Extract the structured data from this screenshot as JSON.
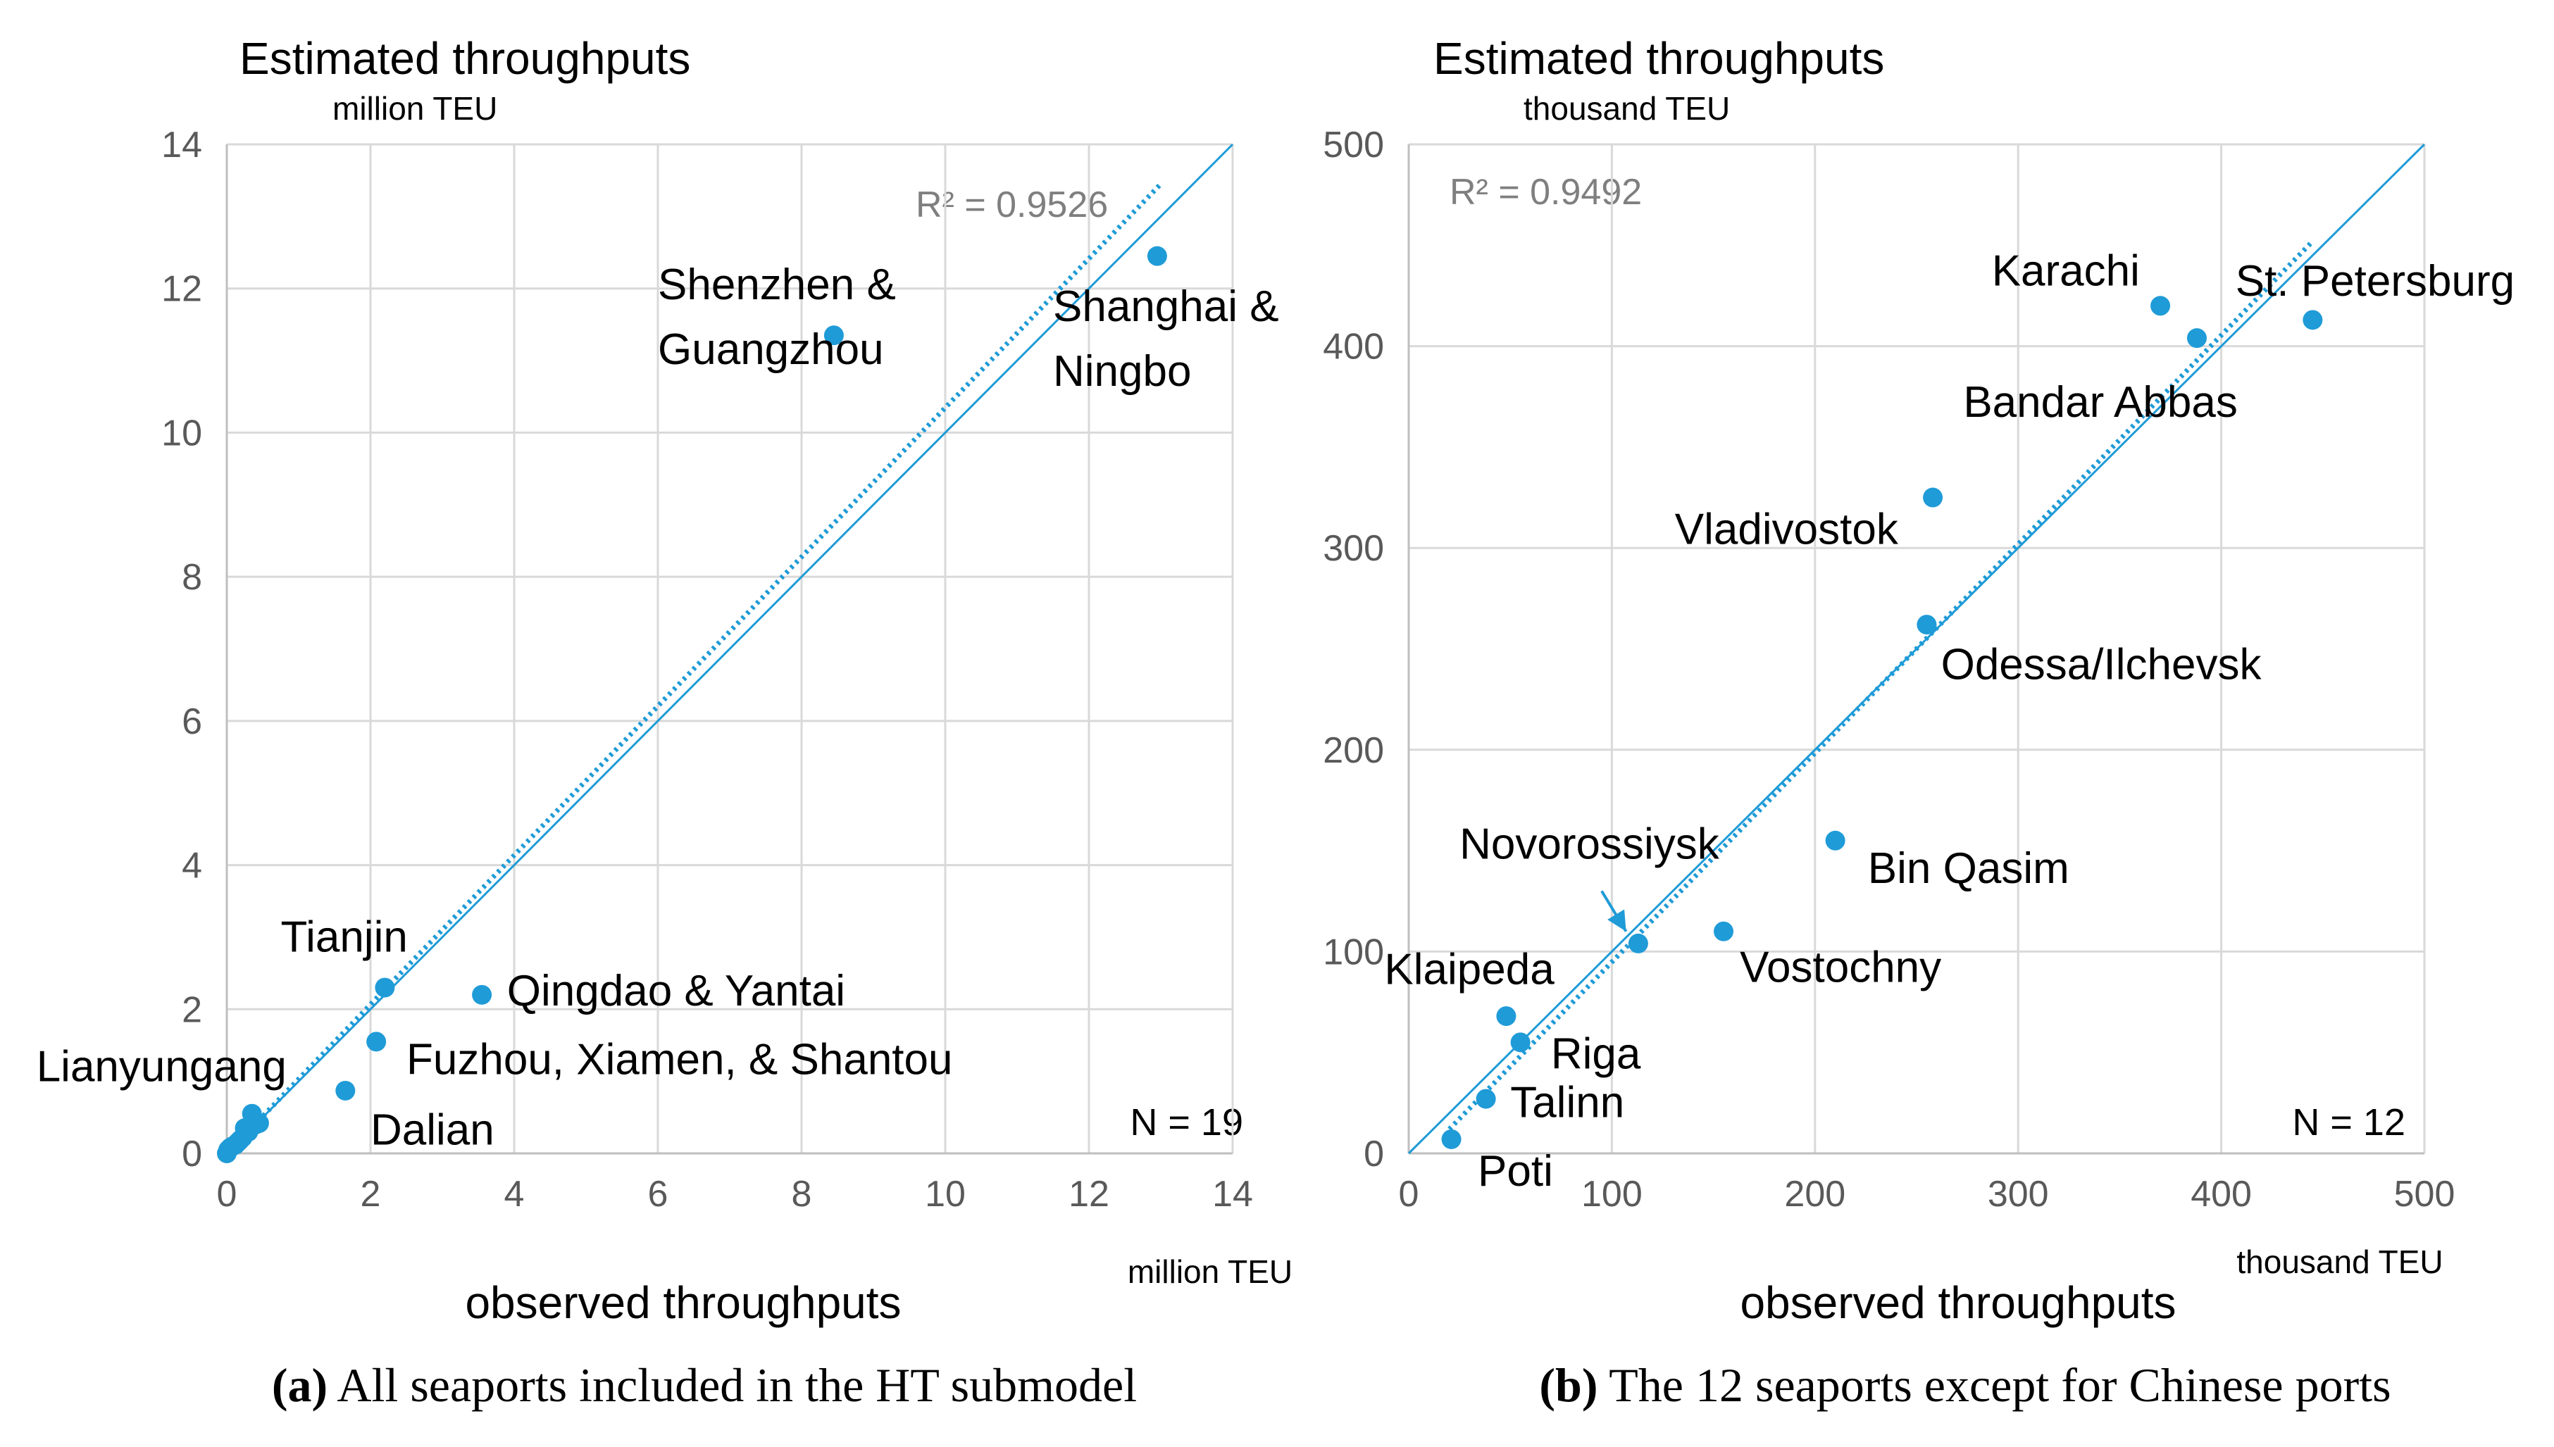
{
  "chart_data": [
    {
      "type": "scatter",
      "title": "Estimated throughputs",
      "ylabel": "Estimated throughputs",
      "yunit": "million TEU",
      "xlabel": "observed throughputs",
      "xunit": "million TEU",
      "xlim": [
        0,
        14
      ],
      "ylim": [
        0,
        14
      ],
      "xticks": [
        0,
        2,
        4,
        6,
        8,
        10,
        12,
        14
      ],
      "yticks": [
        0,
        2,
        4,
        6,
        8,
        10,
        12,
        14
      ],
      "grid": true,
      "r2_label": "R² = 0.9526",
      "n_label": "N = 19",
      "trendline": {
        "style": "dotted",
        "from": [
          0.1,
          0.1
        ],
        "to": [
          13.0,
          13.45
        ]
      },
      "identity_line": {
        "style": "solid",
        "from": [
          0,
          0
        ],
        "to": [
          14,
          14
        ]
      },
      "points": [
        {
          "x": 0.0,
          "y": 0.0
        },
        {
          "x": 0.02,
          "y": 0.05
        },
        {
          "x": 0.05,
          "y": 0.08
        },
        {
          "x": 0.08,
          "y": 0.1
        },
        {
          "x": 0.12,
          "y": 0.12
        },
        {
          "x": 0.18,
          "y": 0.18
        },
        {
          "x": 0.22,
          "y": 0.22
        },
        {
          "x": 0.25,
          "y": 0.35
        },
        {
          "x": 0.35,
          "y": 0.55
        },
        {
          "x": 0.45,
          "y": 0.42
        },
        {
          "x": 0.3,
          "y": 0.3
        },
        {
          "x": 0.15,
          "y": 0.15
        },
        {
          "x": 1.65,
          "y": 0.87
        },
        {
          "x": 2.08,
          "y": 1.55
        },
        {
          "x": 2.2,
          "y": 2.3
        },
        {
          "x": 3.55,
          "y": 2.2
        },
        {
          "x": 8.45,
          "y": 11.35
        },
        {
          "x": 12.95,
          "y": 12.45
        },
        {
          "x": 0.4,
          "y": 0.4
        }
      ],
      "labels": [
        {
          "text": "Shenzhen &",
          "x": 6.0,
          "y": 11.85
        },
        {
          "text": "Guangzhou",
          "x": 6.0,
          "y": 10.95
        },
        {
          "text": "Shanghai &",
          "x": 11.5,
          "y": 11.55
        },
        {
          "text": "Ningbo",
          "x": 11.5,
          "y": 10.65
        },
        {
          "text": "Tianjin",
          "x": 0.75,
          "y": 2.8
        },
        {
          "text": "Qingdao & Yantai",
          "x": 3.9,
          "y": 2.05
        },
        {
          "text": "Fuzhou, Xiamen, & Shantou",
          "x": 2.5,
          "y": 1.1
        },
        {
          "text": "Lianyungang",
          "x": -2.65,
          "y": 1.0
        },
        {
          "text": "Dalian",
          "x": 2.0,
          "y": 0.12
        }
      ],
      "caption_letter": "(a)",
      "caption_text": " All seaports included in the HT submodel"
    },
    {
      "type": "scatter",
      "title": "Estimated throughputs",
      "ylabel": "Estimated throughputs",
      "yunit": "thousand TEU",
      "xlabel": "observed throughputs",
      "xunit": "thousand TEU",
      "xlim": [
        0,
        500
      ],
      "ylim": [
        0,
        500
      ],
      "xticks": [
        0,
        100,
        200,
        300,
        400,
        500
      ],
      "yticks": [
        0,
        100,
        200,
        300,
        400,
        500
      ],
      "grid": true,
      "r2_label": "R² = 0.9492",
      "n_label": "N = 12",
      "trendline": {
        "style": "dotted",
        "from": [
          20,
          12
        ],
        "to": [
          445,
          452
        ]
      },
      "identity_line": {
        "style": "solid",
        "from": [
          0,
          0
        ],
        "to": [
          500,
          500
        ]
      },
      "points": [
        {
          "x": 21,
          "y": 7
        },
        {
          "x": 38,
          "y": 27
        },
        {
          "x": 55,
          "y": 55
        },
        {
          "x": 48,
          "y": 68
        },
        {
          "x": 113,
          "y": 104
        },
        {
          "x": 155,
          "y": 110
        },
        {
          "x": 210,
          "y": 155
        },
        {
          "x": 255,
          "y": 262
        },
        {
          "x": 258,
          "y": 325
        },
        {
          "x": 370,
          "y": 420
        },
        {
          "x": 388,
          "y": 404
        },
        {
          "x": 445,
          "y": 413
        }
      ],
      "labels": [
        {
          "text": "Karachi",
          "x": 287,
          "y": 430
        },
        {
          "text": "St. Petersburg",
          "x": 407,
          "y": 425
        },
        {
          "text": "Bandar Abbas",
          "x": 273,
          "y": 365
        },
        {
          "text": "Vladivostok",
          "x": 131,
          "y": 302
        },
        {
          "text": "Odessa/Ilchevsk",
          "x": 262,
          "y": 235
        },
        {
          "text": "Novorossiysk",
          "x": 25,
          "y": 146
        },
        {
          "text": "Bin Qasim",
          "x": 226,
          "y": 134
        },
        {
          "text": "Vostochny",
          "x": 163,
          "y": 85
        },
        {
          "text": "Klaipeda",
          "x": -12,
          "y": 84
        },
        {
          "text": "Riga",
          "x": 70,
          "y": 42
        },
        {
          "text": "Talinn",
          "x": 50,
          "y": 18
        },
        {
          "text": "Poti",
          "x": 34,
          "y": -16
        }
      ],
      "arrow": {
        "from": [
          95,
          130
        ],
        "to": [
          107,
          110
        ]
      },
      "caption_letter": "(b)",
      "caption_text": " The 12 seaports except for Chinese ports"
    }
  ],
  "colors": {
    "point": "#1f9bd7",
    "line": "#1f9bd7",
    "grid": "#d9d9d9",
    "axis": "#bfbfbf"
  }
}
